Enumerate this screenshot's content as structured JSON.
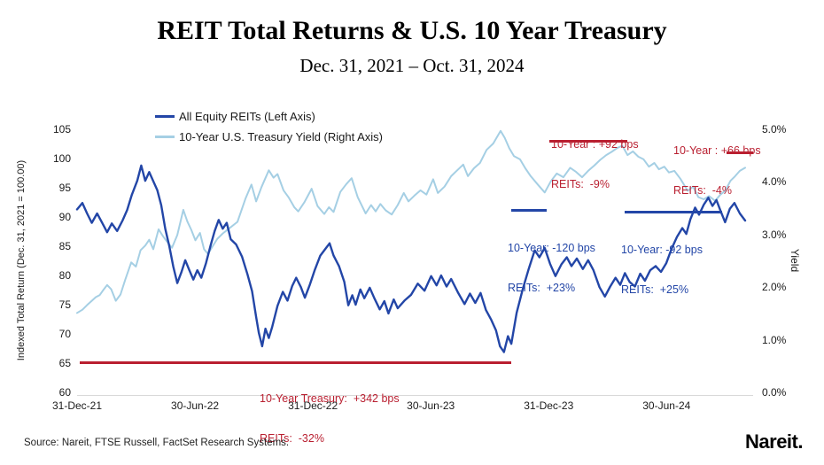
{
  "header": {
    "title": "REIT Total Returns & U.S. 10 Year Treasury",
    "subtitle": "Dec. 31, 2021 – Oct. 31, 2024"
  },
  "footer": {
    "source": "Source: Nareit, FTSE Russell, FactSet Research Systems.",
    "logo": "Nareit."
  },
  "colors": {
    "reits_blue": "#2346a7",
    "treasury_light_blue": "#a5cfe4",
    "annotation_red": "#b91f30"
  },
  "legend": {
    "items": [
      {
        "label": "All Equity REITs (Left Axis)",
        "color": "#2346a7"
      },
      {
        "label": "10-Year U.S. Treasury Yield (Right Axis)",
        "color": "#a5cfe4"
      }
    ]
  },
  "annotations": {
    "red_mid": {
      "line1": "10-Year : +92 bps",
      "line2": "REITs:  -9%"
    },
    "red_right": {
      "line1": "10-Year : +66 bps",
      "line2": "REITs:  -4%"
    },
    "blue_left": {
      "line1": "10-Year: -120 bps",
      "line2": "REITs:  +23%"
    },
    "blue_right": {
      "line1": "10-Year: -92 bps",
      "line2": "REITs:  +25%"
    },
    "red_bottom": {
      "line1": "10-Year Treasury:  +342 bps",
      "line2": "REITs:  -32%"
    }
  },
  "chart_data": {
    "type": "line",
    "title": "REIT Total Returns & U.S. 10 Year Treasury",
    "x_range": [
      "31-Dec-21",
      "31-Oct-24"
    ],
    "months_total": 34,
    "grid": false,
    "legend_position": "top-left",
    "x_ticks": [
      {
        "label": "31-Dec-21",
        "month": 0
      },
      {
        "label": "30-Jun-22",
        "month": 6
      },
      {
        "label": "31-Dec-22",
        "month": 12
      },
      {
        "label": "30-Jun-23",
        "month": 18
      },
      {
        "label": "31-Dec-23",
        "month": 24
      },
      {
        "label": "30-Jun-24",
        "month": 30
      }
    ],
    "left_axis": {
      "label": "Indexed Total Return (Dec. 31, 2021 = 100.00)",
      "range": [
        60,
        105
      ],
      "ticks": [
        105,
        100,
        95,
        90,
        85,
        80,
        75,
        70,
        65,
        60
      ]
    },
    "right_axis": {
      "label": "Yield",
      "range": [
        0,
        5
      ],
      "ticks": [
        {
          "label": "5.0%",
          "value": 5
        },
        {
          "label": "4.0%",
          "value": 4
        },
        {
          "label": "3.0%",
          "value": 3
        },
        {
          "label": "2.0%",
          "value": 2
        },
        {
          "label": "1.0%",
          "value": 1
        },
        {
          "label": "0.0%",
          "value": 0
        }
      ]
    },
    "series": [
      {
        "name": "All Equity REITs (Left Axis)",
        "axis": "left",
        "color": "#2346a7",
        "points": [
          [
            0,
            91.3
          ],
          [
            0.008,
            92.4
          ],
          [
            0.015,
            90.6
          ],
          [
            0.022,
            89.0
          ],
          [
            0.03,
            90.6
          ],
          [
            0.038,
            88.9
          ],
          [
            0.045,
            87.4
          ],
          [
            0.052,
            88.9
          ],
          [
            0.06,
            87.6
          ],
          [
            0.068,
            89.4
          ],
          [
            0.075,
            91.2
          ],
          [
            0.082,
            93.8
          ],
          [
            0.09,
            96.2
          ],
          [
            0.096,
            98.8
          ],
          [
            0.102,
            96.2
          ],
          [
            0.108,
            97.7
          ],
          [
            0.115,
            95.9
          ],
          [
            0.12,
            94.6
          ],
          [
            0.126,
            92.0
          ],
          [
            0.132,
            88.0
          ],
          [
            0.138,
            85.0
          ],
          [
            0.144,
            81.5
          ],
          [
            0.15,
            78.7
          ],
          [
            0.156,
            80.5
          ],
          [
            0.162,
            82.6
          ],
          [
            0.168,
            80.9
          ],
          [
            0.174,
            79.3
          ],
          [
            0.18,
            80.9
          ],
          [
            0.186,
            79.6
          ],
          [
            0.193,
            82.1
          ],
          [
            0.2,
            85.2
          ],
          [
            0.206,
            87.6
          ],
          [
            0.212,
            89.5
          ],
          [
            0.218,
            88.0
          ],
          [
            0.224,
            89.0
          ],
          [
            0.23,
            86.2
          ],
          [
            0.238,
            85.3
          ],
          [
            0.247,
            83.2
          ],
          [
            0.255,
            80.2
          ],
          [
            0.262,
            77.3
          ],
          [
            0.268,
            72.9
          ],
          [
            0.272,
            70.2
          ],
          [
            0.277,
            67.9
          ],
          [
            0.282,
            70.9
          ],
          [
            0.287,
            69.3
          ],
          [
            0.292,
            71.2
          ],
          [
            0.3,
            74.8
          ],
          [
            0.308,
            77.2
          ],
          [
            0.315,
            75.7
          ],
          [
            0.322,
            78.2
          ],
          [
            0.328,
            79.6
          ],
          [
            0.335,
            78.0
          ],
          [
            0.341,
            76.2
          ],
          [
            0.348,
            78.3
          ],
          [
            0.356,
            81.0
          ],
          [
            0.364,
            83.4
          ],
          [
            0.372,
            84.6
          ],
          [
            0.378,
            85.5
          ],
          [
            0.384,
            83.4
          ],
          [
            0.392,
            81.6
          ],
          [
            0.4,
            78.9
          ],
          [
            0.406,
            74.9
          ],
          [
            0.412,
            76.6
          ],
          [
            0.417,
            75.0
          ],
          [
            0.424,
            77.6
          ],
          [
            0.43,
            76.1
          ],
          [
            0.438,
            77.9
          ],
          [
            0.445,
            76.1
          ],
          [
            0.453,
            74.2
          ],
          [
            0.46,
            75.6
          ],
          [
            0.466,
            73.5
          ],
          [
            0.474,
            75.9
          ],
          [
            0.48,
            74.4
          ],
          [
            0.49,
            75.7
          ],
          [
            0.5,
            76.7
          ],
          [
            0.51,
            78.6
          ],
          [
            0.52,
            77.4
          ],
          [
            0.53,
            79.9
          ],
          [
            0.538,
            78.3
          ],
          [
            0.545,
            80.0
          ],
          [
            0.553,
            78.1
          ],
          [
            0.56,
            79.4
          ],
          [
            0.57,
            77.1
          ],
          [
            0.58,
            75.1
          ],
          [
            0.588,
            76.9
          ],
          [
            0.596,
            75.3
          ],
          [
            0.604,
            77.0
          ],
          [
            0.612,
            74.1
          ],
          [
            0.62,
            72.4
          ],
          [
            0.627,
            70.6
          ],
          [
            0.633,
            67.9
          ],
          [
            0.639,
            66.9
          ],
          [
            0.645,
            69.6
          ],
          [
            0.65,
            68.3
          ],
          [
            0.658,
            73.6
          ],
          [
            0.667,
            77.6
          ],
          [
            0.676,
            81.1
          ],
          [
            0.685,
            84.3
          ],
          [
            0.692,
            83.1
          ],
          [
            0.7,
            84.7
          ],
          [
            0.708,
            82.0
          ],
          [
            0.716,
            79.9
          ],
          [
            0.725,
            81.9
          ],
          [
            0.733,
            83.1
          ],
          [
            0.74,
            81.6
          ],
          [
            0.748,
            82.9
          ],
          [
            0.757,
            81.1
          ],
          [
            0.765,
            82.6
          ],
          [
            0.773,
            80.9
          ],
          [
            0.782,
            78.0
          ],
          [
            0.79,
            76.4
          ],
          [
            0.798,
            78.1
          ],
          [
            0.806,
            79.6
          ],
          [
            0.813,
            78.4
          ],
          [
            0.82,
            80.4
          ],
          [
            0.827,
            78.9
          ],
          [
            0.835,
            78.1
          ],
          [
            0.843,
            80.3
          ],
          [
            0.85,
            79.1
          ],
          [
            0.858,
            80.9
          ],
          [
            0.866,
            81.6
          ],
          [
            0.874,
            80.6
          ],
          [
            0.882,
            82.1
          ],
          [
            0.89,
            84.6
          ],
          [
            0.898,
            86.6
          ],
          [
            0.906,
            88.1
          ],
          [
            0.912,
            87.1
          ],
          [
            0.918,
            89.6
          ],
          [
            0.925,
            91.6
          ],
          [
            0.931,
            90.4
          ],
          [
            0.938,
            92.1
          ],
          [
            0.945,
            93.3
          ],
          [
            0.951,
            91.9
          ],
          [
            0.957,
            92.9
          ],
          [
            0.963,
            91.1
          ],
          [
            0.97,
            89.1
          ],
          [
            0.977,
            91.4
          ],
          [
            0.984,
            92.4
          ],
          [
            0.992,
            90.6
          ],
          [
            1,
            89.4
          ]
        ]
      },
      {
        "name": "10-Year U.S. Treasury Yield (Right Axis)",
        "axis": "right",
        "color": "#a5cfe4",
        "points": [
          [
            0,
            1.51
          ],
          [
            0.008,
            1.57
          ],
          [
            0.015,
            1.66
          ],
          [
            0.022,
            1.74
          ],
          [
            0.028,
            1.81
          ],
          [
            0.034,
            1.85
          ],
          [
            0.04,
            1.96
          ],
          [
            0.045,
            2.04
          ],
          [
            0.051,
            1.96
          ],
          [
            0.058,
            1.74
          ],
          [
            0.065,
            1.86
          ],
          [
            0.072,
            2.14
          ],
          [
            0.081,
            2.47
          ],
          [
            0.088,
            2.39
          ],
          [
            0.095,
            2.7
          ],
          [
            0.102,
            2.79
          ],
          [
            0.108,
            2.9
          ],
          [
            0.114,
            2.72
          ],
          [
            0.122,
            3.1
          ],
          [
            0.129,
            2.96
          ],
          [
            0.135,
            2.86
          ],
          [
            0.142,
            2.75
          ],
          [
            0.15,
            2.99
          ],
          [
            0.159,
            3.47
          ],
          [
            0.165,
            3.25
          ],
          [
            0.171,
            3.09
          ],
          [
            0.177,
            2.89
          ],
          [
            0.184,
            3.03
          ],
          [
            0.19,
            2.72
          ],
          [
            0.196,
            2.63
          ],
          [
            0.203,
            2.78
          ],
          [
            0.21,
            2.92
          ],
          [
            0.218,
            3.02
          ],
          [
            0.228,
            3.12
          ],
          [
            0.24,
            3.24
          ],
          [
            0.252,
            3.68
          ],
          [
            0.261,
            3.95
          ],
          [
            0.268,
            3.63
          ],
          [
            0.276,
            3.9
          ],
          [
            0.287,
            4.22
          ],
          [
            0.294,
            4.08
          ],
          [
            0.3,
            4.15
          ],
          [
            0.309,
            3.84
          ],
          [
            0.317,
            3.7
          ],
          [
            0.325,
            3.52
          ],
          [
            0.331,
            3.44
          ],
          [
            0.34,
            3.61
          ],
          [
            0.351,
            3.87
          ],
          [
            0.36,
            3.54
          ],
          [
            0.37,
            3.39
          ],
          [
            0.377,
            3.52
          ],
          [
            0.384,
            3.43
          ],
          [
            0.394,
            3.81
          ],
          [
            0.403,
            3.96
          ],
          [
            0.411,
            4.07
          ],
          [
            0.42,
            3.71
          ],
          [
            0.432,
            3.4
          ],
          [
            0.44,
            3.56
          ],
          [
            0.447,
            3.44
          ],
          [
            0.454,
            3.58
          ],
          [
            0.462,
            3.46
          ],
          [
            0.471,
            3.38
          ],
          [
            0.48,
            3.56
          ],
          [
            0.489,
            3.79
          ],
          [
            0.496,
            3.63
          ],
          [
            0.505,
            3.74
          ],
          [
            0.514,
            3.84
          ],
          [
            0.523,
            3.76
          ],
          [
            0.533,
            4.05
          ],
          [
            0.54,
            3.79
          ],
          [
            0.55,
            3.91
          ],
          [
            0.56,
            4.11
          ],
          [
            0.569,
            4.22
          ],
          [
            0.578,
            4.33
          ],
          [
            0.585,
            4.11
          ],
          [
            0.594,
            4.26
          ],
          [
            0.603,
            4.36
          ],
          [
            0.613,
            4.61
          ],
          [
            0.623,
            4.73
          ],
          [
            0.634,
            4.97
          ],
          [
            0.64,
            4.84
          ],
          [
            0.647,
            4.64
          ],
          [
            0.654,
            4.49
          ],
          [
            0.663,
            4.43
          ],
          [
            0.671,
            4.26
          ],
          [
            0.679,
            4.11
          ],
          [
            0.689,
            3.96
          ],
          [
            0.7,
            3.8
          ],
          [
            0.709,
            4.01
          ],
          [
            0.718,
            4.16
          ],
          [
            0.728,
            4.09
          ],
          [
            0.738,
            4.27
          ],
          [
            0.747,
            4.19
          ],
          [
            0.756,
            4.09
          ],
          [
            0.765,
            4.21
          ],
          [
            0.774,
            4.31
          ],
          [
            0.783,
            4.42
          ],
          [
            0.792,
            4.51
          ],
          [
            0.8,
            4.57
          ],
          [
            0.808,
            4.64
          ],
          [
            0.816,
            4.69
          ],
          [
            0.824,
            4.51
          ],
          [
            0.832,
            4.58
          ],
          [
            0.84,
            4.48
          ],
          [
            0.848,
            4.43
          ],
          [
            0.856,
            4.29
          ],
          [
            0.864,
            4.36
          ],
          [
            0.871,
            4.24
          ],
          [
            0.879,
            4.29
          ],
          [
            0.886,
            4.18
          ],
          [
            0.894,
            4.21
          ],
          [
            0.903,
            4.06
          ],
          [
            0.914,
            3.83
          ],
          [
            0.922,
            3.91
          ],
          [
            0.93,
            3.71
          ],
          [
            0.938,
            3.67
          ],
          [
            0.946,
            3.73
          ],
          [
            0.955,
            3.64
          ],
          [
            0.963,
            3.76
          ],
          [
            0.97,
            3.83
          ],
          [
            0.978,
            4.02
          ],
          [
            0.985,
            4.11
          ],
          [
            0.992,
            4.21
          ],
          [
            1,
            4.27
          ]
        ]
      }
    ]
  }
}
